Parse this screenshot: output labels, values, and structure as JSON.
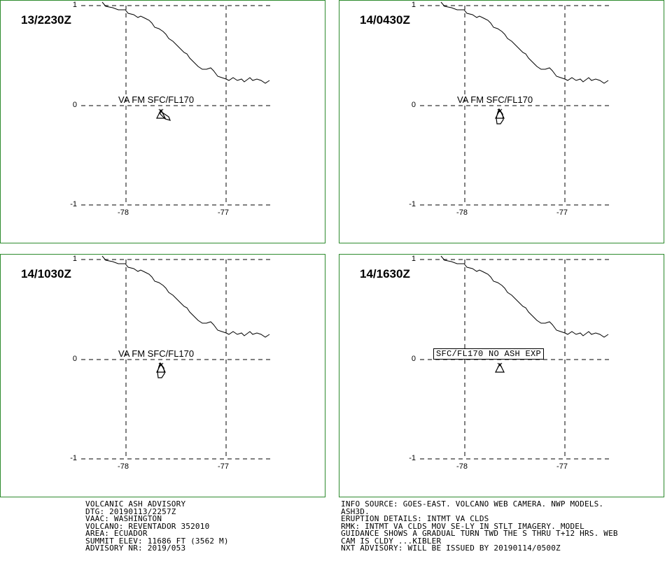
{
  "panels": [
    {
      "time": "13/2230Z",
      "label": "VA FM SFC/FL170",
      "label_boxed": false,
      "plume": "se"
    },
    {
      "time": "14/0430Z",
      "label": "VA FM SFC/FL170",
      "label_boxed": false,
      "plume": "s"
    },
    {
      "time": "14/1030Z",
      "label": "VA FM SFC/FL170",
      "label_boxed": false,
      "plume": "s"
    },
    {
      "time": "14/1630Z",
      "label": "SFC/FL170 NO ASH EXP",
      "label_boxed": true,
      "plume": "none"
    }
  ],
  "axis": {
    "lat_labels": [
      "1",
      "0",
      "-1"
    ],
    "lon_labels": [
      "-78",
      "-77"
    ]
  },
  "map": {
    "volcano_symbol": "triangle-icon",
    "coastline_color": "#000000",
    "panel_border_color": "#2e8b2e"
  },
  "advisory_left": [
    "VOLCANIC ASH ADVISORY",
    "DTG: 20190113/2257Z",
    "VAAC: WASHINGTON",
    "VOLCANO: REVENTADOR 352010",
    "AREA: ECUADOR",
    "SUMMIT ELEV: 11686 FT (3562 M)",
    "ADVISORY NR: 2019/053"
  ],
  "advisory_right": [
    "INFO SOURCE: GOES-EAST. VOLCANO WEB CAMERA. NWP MODELS.",
    "ASH3D.",
    "ERUPTION DETAILS: INTMT VA CLDS",
    "RMK: INTMT VA CLDS MOV SE-LY IN STLT IMAGERY. MODEL",
    "GUIDANCE SHOWS A GRADUAL TURN TWD THE S THRU T+12 HRS. WEB",
    "CAM IS CLDY ...KIBLER",
    "NXT ADVISORY: WILL BE ISSUED BY 20190114/0500Z"
  ]
}
